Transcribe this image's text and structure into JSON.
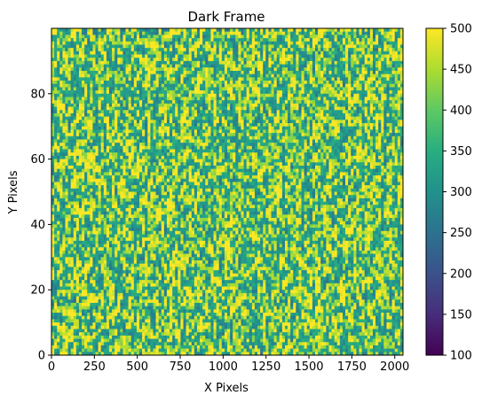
{
  "chart_data": {
    "type": "heatmap",
    "title": "Dark Frame",
    "xlabel": "X Pixels",
    "ylabel": "Y Pixels",
    "xlim": [
      0,
      2048
    ],
    "ylim": [
      0,
      100
    ],
    "x_ticks": [
      0,
      250,
      500,
      750,
      1000,
      1250,
      1500,
      1750,
      2000
    ],
    "y_ticks": [
      0,
      20,
      40,
      60,
      80
    ],
    "colorbar": {
      "vmin": 100,
      "vmax": 500,
      "ticks": [
        100,
        150,
        200,
        250,
        300,
        350,
        400,
        450,
        500
      ],
      "colormap": "viridis"
    },
    "dominant_value_range": [
      250,
      500
    ],
    "grid": false
  }
}
